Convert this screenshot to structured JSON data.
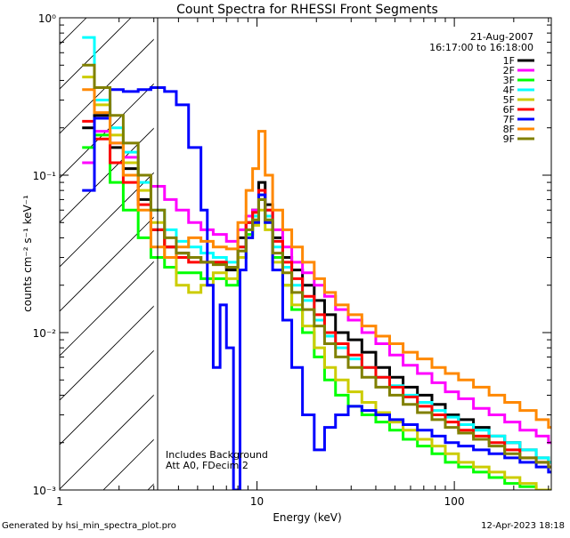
{
  "chart_data": {
    "type": "line",
    "title": "Count Spectra for RHESSI Front Segments",
    "xlabel": "Energy (keV)",
    "ylabel": "counts cm⁻² s⁻¹ keV⁻¹",
    "xscale": "log",
    "yscale": "log",
    "xlim": [
      1,
      310
    ],
    "ylim": [
      0.001,
      1
    ],
    "x_ticks": [
      1,
      10,
      100
    ],
    "y_ticks": [
      1,
      0.1,
      0.01,
      0.001
    ],
    "x_tick_labels": [
      "1",
      "10",
      "100"
    ],
    "y_tick_labels": [
      "10⁰",
      "10⁻¹",
      "10⁻²",
      "10⁻³"
    ],
    "date": "21-Aug-2007",
    "time_range": "16:17:00 to 16:18:00",
    "annotation_line1": "Includes Background",
    "annotation_line2": "Att A0, FDecim 2",
    "hatched_region_xlim": [
      1,
      3
    ],
    "legend_position": "top-right",
    "footer_left": "Generated by hsi_min_spectra_plot.pro",
    "footer_right": "12-Apr-2023 18:18",
    "series": [
      {
        "name": "1F",
        "color": "#000000",
        "x": [
          1.3,
          1.5,
          1.8,
          2.1,
          2.5,
          2.9,
          3.4,
          3.9,
          4.5,
          5.2,
          6,
          7,
          8,
          8.8,
          9.5,
          10.2,
          11,
          12,
          13.5,
          15,
          17,
          19.5,
          22,
          25,
          29,
          34,
          40,
          47,
          55,
          65,
          77,
          90,
          105,
          125,
          150,
          180,
          215,
          260,
          300
        ],
        "y": [
          0.2,
          0.24,
          0.15,
          0.11,
          0.07,
          0.045,
          0.035,
          0.032,
          0.03,
          0.028,
          0.028,
          0.025,
          0.04,
          0.05,
          0.06,
          0.09,
          0.065,
          0.04,
          0.03,
          0.025,
          0.02,
          0.016,
          0.013,
          0.01,
          0.009,
          0.0075,
          0.006,
          0.0052,
          0.0045,
          0.004,
          0.0035,
          0.003,
          0.0028,
          0.0025,
          0.0022,
          0.002,
          0.0018,
          0.0016,
          0.0015
        ]
      },
      {
        "name": "2F",
        "color": "#ff00ff",
        "x": [
          1.3,
          1.5,
          1.8,
          2.1,
          2.5,
          2.9,
          3.4,
          3.9,
          4.5,
          5.2,
          6,
          7,
          8,
          8.8,
          9.5,
          10.2,
          11,
          12,
          13.5,
          15,
          17,
          19.5,
          22,
          25,
          29,
          34,
          40,
          47,
          55,
          65,
          77,
          90,
          105,
          125,
          150,
          180,
          215,
          260,
          300
        ],
        "y": [
          0.12,
          0.19,
          0.16,
          0.13,
          0.1,
          0.085,
          0.07,
          0.06,
          0.05,
          0.045,
          0.042,
          0.038,
          0.045,
          0.055,
          0.06,
          0.07,
          0.06,
          0.045,
          0.035,
          0.028,
          0.024,
          0.02,
          0.017,
          0.014,
          0.012,
          0.01,
          0.0085,
          0.0072,
          0.0062,
          0.0055,
          0.0048,
          0.0042,
          0.0038,
          0.0033,
          0.003,
          0.0027,
          0.0024,
          0.0022,
          0.002
        ]
      },
      {
        "name": "3F",
        "color": "#00ff00",
        "x": [
          1.3,
          1.5,
          1.8,
          2.1,
          2.5,
          2.9,
          3.4,
          3.9,
          4.5,
          5.2,
          6,
          7,
          8,
          8.8,
          9.5,
          10.2,
          11,
          12,
          13.5,
          15,
          17,
          19.5,
          22,
          25,
          29,
          34,
          40,
          47,
          55,
          65,
          77,
          90,
          105,
          125,
          150,
          180,
          215,
          260,
          300
        ],
        "y": [
          0.15,
          0.18,
          0.09,
          0.06,
          0.04,
          0.03,
          0.026,
          0.024,
          0.024,
          0.022,
          0.022,
          0.02,
          0.03,
          0.042,
          0.05,
          0.07,
          0.05,
          0.03,
          0.02,
          0.014,
          0.01,
          0.007,
          0.005,
          0.004,
          0.0034,
          0.003,
          0.0027,
          0.0024,
          0.0021,
          0.0019,
          0.0017,
          0.0015,
          0.0014,
          0.0013,
          0.0012,
          0.0011,
          0.00105,
          0.001,
          0.001
        ]
      },
      {
        "name": "4F",
        "color": "#00ffff",
        "x": [
          1.3,
          1.5,
          1.8,
          2.1,
          2.5,
          2.9,
          3.4,
          3.9,
          4.5,
          5.2,
          6,
          7,
          8,
          8.8,
          9.5,
          10.2,
          11,
          12,
          13.5,
          15,
          17,
          19.5,
          22,
          25,
          29,
          34,
          40,
          47,
          55,
          65,
          77,
          90,
          105,
          125,
          150,
          180,
          215,
          260,
          300
        ],
        "y": [
          0.75,
          0.3,
          0.2,
          0.14,
          0.09,
          0.06,
          0.045,
          0.038,
          0.035,
          0.032,
          0.03,
          0.028,
          0.035,
          0.045,
          0.055,
          0.075,
          0.055,
          0.035,
          0.026,
          0.02,
          0.016,
          0.012,
          0.0095,
          0.008,
          0.0068,
          0.006,
          0.0052,
          0.0046,
          0.004,
          0.0036,
          0.0032,
          0.0029,
          0.0026,
          0.0024,
          0.0022,
          0.002,
          0.0018,
          0.0016,
          0.0015
        ]
      },
      {
        "name": "5F",
        "color": "#cccc00",
        "x": [
          1.3,
          1.5,
          1.8,
          2.1,
          2.5,
          2.9,
          3.4,
          3.9,
          4.5,
          5.2,
          6,
          7,
          8,
          8.8,
          9.5,
          10.2,
          11,
          12,
          13.5,
          15,
          17,
          19.5,
          22,
          25,
          29,
          34,
          40,
          47,
          55,
          65,
          77,
          90,
          105,
          125,
          150,
          180,
          215,
          260,
          300
        ],
        "y": [
          0.42,
          0.28,
          0.18,
          0.12,
          0.08,
          0.05,
          0.03,
          0.02,
          0.018,
          0.02,
          0.024,
          0.022,
          0.03,
          0.04,
          0.048,
          0.06,
          0.045,
          0.028,
          0.02,
          0.015,
          0.011,
          0.008,
          0.006,
          0.005,
          0.0042,
          0.0036,
          0.0031,
          0.0027,
          0.0024,
          0.0021,
          0.0019,
          0.0017,
          0.0015,
          0.0014,
          0.0013,
          0.0012,
          0.0011,
          0.001,
          0.001
        ]
      },
      {
        "name": "6F",
        "color": "#ff0000",
        "x": [
          1.3,
          1.5,
          1.8,
          2.1,
          2.5,
          2.9,
          3.4,
          3.9,
          4.5,
          5.2,
          6,
          7,
          8,
          8.8,
          9.5,
          10.2,
          11,
          12,
          13.5,
          15,
          17,
          19.5,
          22,
          25,
          29,
          34,
          40,
          47,
          55,
          65,
          77,
          90,
          105,
          125,
          150,
          180,
          215,
          260,
          300
        ],
        "y": [
          0.22,
          0.17,
          0.12,
          0.09,
          0.065,
          0.045,
          0.035,
          0.03,
          0.028,
          0.028,
          0.028,
          0.026,
          0.035,
          0.05,
          0.058,
          0.08,
          0.06,
          0.038,
          0.028,
          0.022,
          0.017,
          0.013,
          0.01,
          0.0085,
          0.0072,
          0.006,
          0.0052,
          0.0045,
          0.0039,
          0.0034,
          0.003,
          0.0027,
          0.0024,
          0.0022,
          0.002,
          0.0018,
          0.0016,
          0.0015,
          0.0014
        ]
      },
      {
        "name": "7F",
        "color": "#0000ff",
        "x": [
          1.3,
          1.5,
          1.8,
          2.1,
          2.5,
          2.9,
          3.4,
          3.9,
          4.5,
          5.2,
          5.6,
          6,
          6.5,
          7,
          7.6,
          8.2,
          8.8,
          9.5,
          10.2,
          11,
          12,
          13.5,
          15,
          17,
          19.5,
          22,
          25,
          29,
          34,
          40,
          47,
          55,
          65,
          77,
          90,
          105,
          125,
          150,
          180,
          215,
          260,
          300
        ],
        "y": [
          0.08,
          0.23,
          0.35,
          0.34,
          0.35,
          0.36,
          0.34,
          0.28,
          0.15,
          0.06,
          0.02,
          0.006,
          0.015,
          0.008,
          0.001,
          0.025,
          0.04,
          0.05,
          0.075,
          0.05,
          0.025,
          0.012,
          0.006,
          0.003,
          0.0018,
          0.0025,
          0.003,
          0.0034,
          0.0032,
          0.003,
          0.0028,
          0.0026,
          0.0024,
          0.0022,
          0.002,
          0.0019,
          0.0018,
          0.0017,
          0.0016,
          0.0015,
          0.0014,
          0.0013
        ]
      },
      {
        "name": "8F",
        "color": "#ff8800",
        "x": [
          1.3,
          1.5,
          1.8,
          2.1,
          2.5,
          2.9,
          3.4,
          3.9,
          4.5,
          5.2,
          6,
          7,
          8,
          8.8,
          9.5,
          10.2,
          11,
          12,
          13.5,
          15,
          17,
          19.5,
          22,
          25,
          29,
          34,
          40,
          47,
          55,
          65,
          77,
          90,
          105,
          125,
          150,
          180,
          215,
          260,
          300
        ],
        "y": [
          0.35,
          0.25,
          0.16,
          0.1,
          0.06,
          0.035,
          0.03,
          0.035,
          0.04,
          0.038,
          0.035,
          0.034,
          0.05,
          0.08,
          0.11,
          0.19,
          0.1,
          0.06,
          0.045,
          0.035,
          0.028,
          0.022,
          0.018,
          0.015,
          0.013,
          0.011,
          0.0095,
          0.0085,
          0.0075,
          0.0068,
          0.006,
          0.0055,
          0.005,
          0.0045,
          0.004,
          0.0036,
          0.0032,
          0.0028,
          0.0025
        ]
      },
      {
        "name": "9F",
        "color": "#808000",
        "x": [
          1.3,
          1.5,
          1.8,
          2.1,
          2.5,
          2.9,
          3.4,
          3.9,
          4.5,
          5.2,
          6,
          7,
          8,
          8.8,
          9.5,
          10.2,
          11,
          12,
          13.5,
          15,
          17,
          19.5,
          22,
          25,
          29,
          34,
          40,
          47,
          55,
          65,
          77,
          90,
          105,
          125,
          150,
          180,
          215,
          260,
          300
        ],
        "y": [
          0.5,
          0.36,
          0.24,
          0.16,
          0.1,
          0.06,
          0.04,
          0.032,
          0.03,
          0.028,
          0.027,
          0.026,
          0.033,
          0.045,
          0.052,
          0.07,
          0.052,
          0.032,
          0.024,
          0.018,
          0.014,
          0.011,
          0.0085,
          0.007,
          0.006,
          0.0052,
          0.0045,
          0.004,
          0.0035,
          0.0031,
          0.0028,
          0.0025,
          0.0023,
          0.0021,
          0.0019,
          0.0017,
          0.0016,
          0.0015,
          0.0014
        ]
      }
    ]
  }
}
